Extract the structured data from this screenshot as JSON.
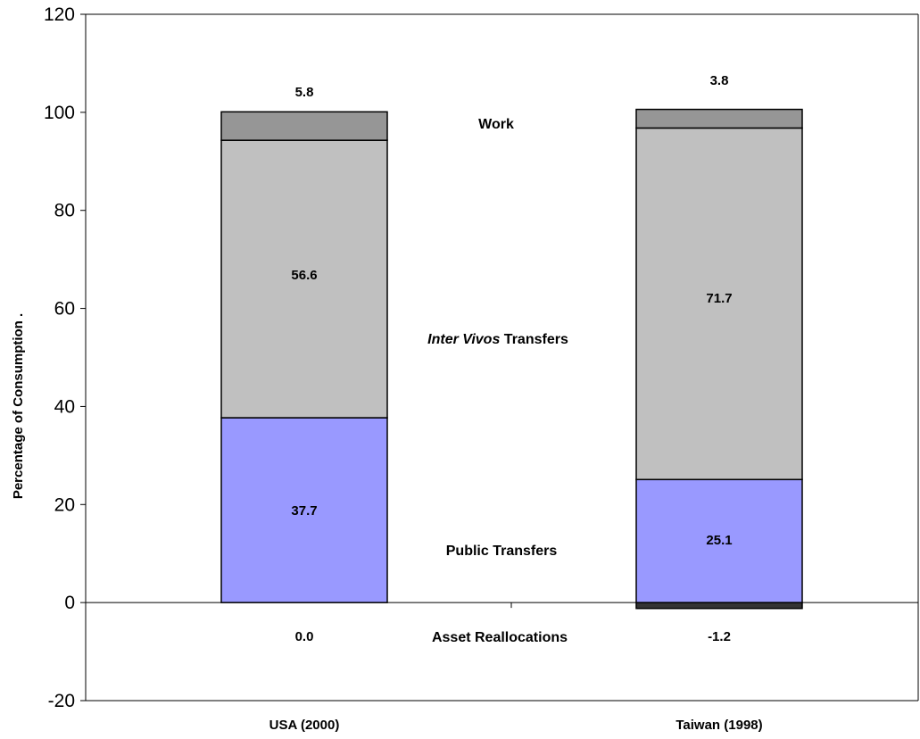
{
  "chart_data": {
    "type": "bar",
    "stacked": true,
    "categories": [
      "USA (2000)",
      "Taiwan (1998)"
    ],
    "series": [
      {
        "name": "Asset Reallocations",
        "values": [
          0.0,
          -1.2
        ],
        "color": "#333333",
        "label_parts": [
          "Asset Reallocations"
        ]
      },
      {
        "name": "Public Transfers",
        "values": [
          37.7,
          25.1
        ],
        "color": "#9999ff",
        "label_parts": [
          "Public Transfers"
        ]
      },
      {
        "name": "Inter Vivos Transfers",
        "values": [
          56.6,
          71.7
        ],
        "color": "#c0c0c0",
        "label_parts": [
          "Inter Vivos",
          " Transfers"
        ]
      },
      {
        "name": "Work",
        "values": [
          5.8,
          3.8
        ],
        "color": "#969696",
        "label_parts": [
          "Work"
        ]
      }
    ],
    "data_labels": [
      [
        "0.0",
        "-1.2"
      ],
      [
        "37.7",
        "25.1"
      ],
      [
        "56.6",
        "71.7"
      ],
      [
        "5.8",
        "3.8"
      ]
    ],
    "ylabel": "Percentage of Consumption .",
    "xlabel": "",
    "ylim": [
      -20,
      120
    ],
    "yticks": [
      -20,
      0,
      20,
      40,
      60,
      80,
      100,
      120
    ],
    "grid": false,
    "legend": "inline labels between bars"
  }
}
